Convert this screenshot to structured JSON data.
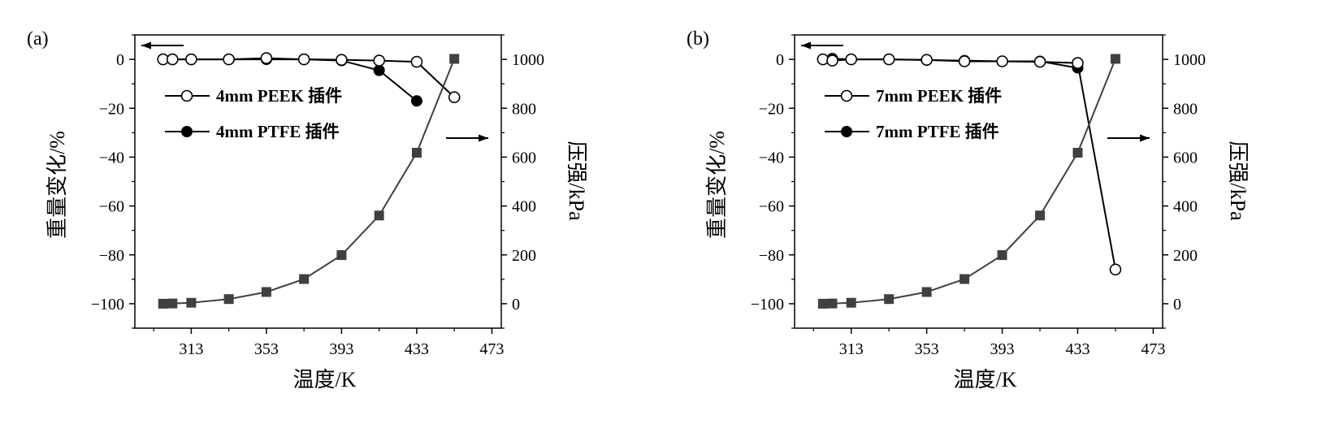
{
  "chart_data": [
    {
      "type": "line",
      "panel_label": "(a)",
      "xlabel": "温度/K",
      "ylabel_left": "重量变化/%",
      "ylabel_right": "压强/kPa",
      "xlim": [
        283,
        478
      ],
      "ylim_left": [
        -110,
        10
      ],
      "ylim_right": [
        -100,
        1100
      ],
      "x_ticks": [
        313,
        353,
        393,
        433,
        473
      ],
      "y_ticks_left": [
        0,
        -20,
        -40,
        -60,
        -80,
        -100
      ],
      "y_ticks_right": [
        1000,
        800,
        600,
        400,
        200,
        0
      ],
      "legend_position": "upper-left",
      "series": [
        {
          "name": "4mm PEEK 插件",
          "axis": "left",
          "marker": "open-circle",
          "color": "#000000",
          "x": [
            298,
            303,
            313,
            333,
            353,
            373,
            393,
            413,
            433,
            453
          ],
          "y": [
            0,
            0,
            0,
            0,
            0.5,
            0,
            -0.2,
            -0.5,
            -1,
            -15.5
          ]
        },
        {
          "name": "4mm PTFE 插件",
          "axis": "left",
          "marker": "filled-circle",
          "color": "#000000",
          "x": [
            298,
            303,
            313,
            333,
            353,
            373,
            393,
            413,
            433
          ],
          "y": [
            0,
            0,
            0,
            0,
            0,
            0,
            -0.5,
            -4.5,
            -17
          ]
        },
        {
          "name": "",
          "axis": "right",
          "marker": "filled-square",
          "color": "#404040",
          "x": [
            298,
            303,
            313,
            333,
            353,
            373,
            393,
            413,
            433,
            453
          ],
          "y": [
            0,
            1,
            4,
            19,
            48,
            101,
            199,
            361,
            618,
            1002
          ]
        }
      ]
    },
    {
      "type": "line",
      "panel_label": "(b)",
      "xlabel": "温度/K",
      "ylabel_left": "重量变化/%",
      "ylabel_right": "压强/kPa",
      "xlim": [
        283,
        478
      ],
      "ylim_left": [
        -110,
        10
      ],
      "ylim_right": [
        -100,
        1100
      ],
      "x_ticks": [
        313,
        353,
        393,
        433,
        473
      ],
      "y_ticks_left": [
        0,
        -20,
        -40,
        -60,
        -80,
        -100
      ],
      "y_ticks_right": [
        1000,
        800,
        600,
        400,
        200,
        0
      ],
      "legend_position": "upper-left",
      "series": [
        {
          "name": "7mm PEEK 插件",
          "axis": "left",
          "marker": "open-circle",
          "color": "#000000",
          "x": [
            298,
            303,
            313,
            333,
            353,
            373,
            393,
            413,
            433,
            453
          ],
          "y": [
            0,
            -0.5,
            0,
            0,
            -0.2,
            -0.8,
            -0.8,
            -1,
            -1.5,
            -86
          ]
        },
        {
          "name": "7mm PTFE 插件",
          "axis": "left",
          "marker": "filled-circle",
          "color": "#000000",
          "x": [
            298,
            303,
            313,
            333,
            353,
            373,
            393,
            413,
            433
          ],
          "y": [
            0,
            0.3,
            0,
            0,
            -0.3,
            -0.5,
            -0.8,
            -0.8,
            -3.5
          ]
        },
        {
          "name": "",
          "axis": "right",
          "marker": "filled-square",
          "color": "#404040",
          "x": [
            298,
            303,
            313,
            333,
            353,
            373,
            393,
            413,
            433,
            453
          ],
          "y": [
            0,
            1,
            4,
            19,
            48,
            101,
            199,
            361,
            618,
            1002
          ]
        }
      ]
    }
  ]
}
